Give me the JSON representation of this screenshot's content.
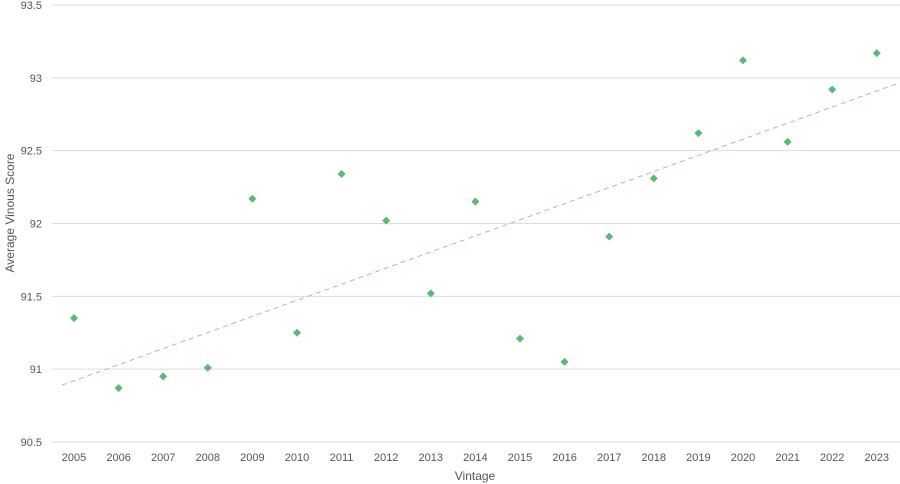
{
  "chart_data": {
    "type": "scatter",
    "title": "",
    "xlabel": "Vintage",
    "ylabel": "Average Vinous Score",
    "categories": [
      "2005",
      "2006",
      "2007",
      "2008",
      "2009",
      "2010",
      "2011",
      "2012",
      "2013",
      "2014",
      "2015",
      "2016",
      "2017",
      "2018",
      "2019",
      "2020",
      "2021",
      "2022",
      "2023"
    ],
    "values": [
      91.35,
      90.87,
      90.95,
      91.01,
      92.17,
      91.25,
      92.34,
      92.02,
      91.52,
      92.15,
      91.21,
      91.05,
      91.91,
      92.31,
      92.62,
      93.12,
      92.56,
      92.92,
      93.17
    ],
    "ylim": [
      90.5,
      93.5
    ],
    "yticks": [
      90.5,
      91,
      91.5,
      92,
      92.5,
      93,
      93.5
    ],
    "ytick_labels": [
      "90.5",
      "91",
      "91.5",
      "92",
      "92.5",
      "93",
      "93.5"
    ],
    "trendline": {
      "style": "dashed",
      "start_value": 90.92,
      "end_value": 92.91
    },
    "grid": true,
    "marker_color": "#5cb87a",
    "trendline_color": "#8ccfa2",
    "grid_color": "#dddddd"
  }
}
